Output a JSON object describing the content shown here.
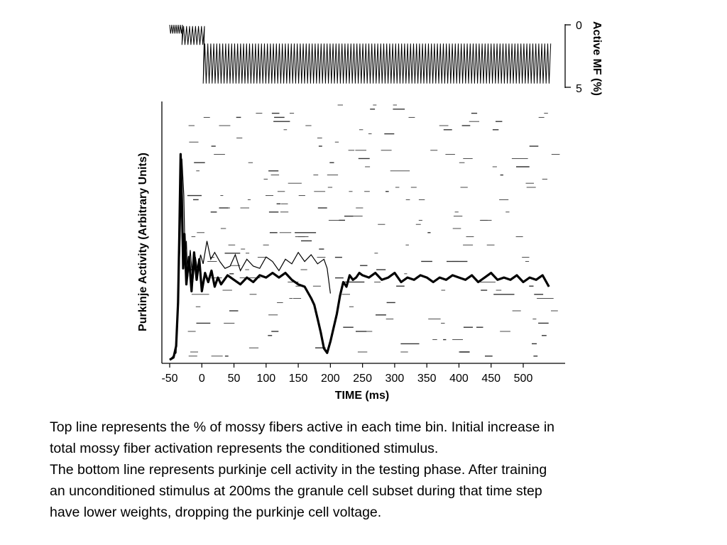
{
  "chart_data": [
    {
      "type": "line",
      "name": "mossy-fiber-panel",
      "ylabel": "Active MF (%)",
      "yticks": [
        "0",
        "5"
      ],
      "ylim": [
        0,
        5
      ],
      "y_inverted": true,
      "x_range": [
        -50,
        550
      ],
      "series": [
        {
          "pattern": "oscillating",
          "segments": [
            {
              "x_start": -50,
              "x_end": -33,
              "baseline": 0,
              "peak": 0.7
            },
            {
              "x_start": -33,
              "x_end": 0,
              "baseline": 0.1,
              "peak": 1.6
            },
            {
              "x_start": 0,
              "x_end": 540,
              "baseline": 1.5,
              "peak": 4.7
            }
          ]
        }
      ]
    },
    {
      "type": "line",
      "name": "purkinje-panel",
      "xlabel": "TIME (ms)",
      "ylabel": "Purkinje Activity (Arbitrary Units)",
      "xticks": [
        -50,
        0,
        50,
        100,
        150,
        200,
        250,
        300,
        350,
        400,
        450,
        500
      ],
      "xlim": [
        -50,
        550
      ],
      "ylim": [
        0,
        100
      ],
      "background": "granule cell spike raster",
      "series": [
        {
          "style": "thin",
          "x": [
            -50,
            -40,
            -34,
            -31,
            -28,
            -26,
            -24,
            -22,
            -18,
            -14,
            -10,
            -6,
            -2,
            2,
            8,
            14,
            20,
            28,
            36,
            44,
            52,
            60,
            70,
            80,
            90,
            100,
            110,
            120,
            130,
            140,
            150,
            160,
            170,
            180,
            190,
            195,
            200
          ],
          "y": [
            0,
            3,
            50,
            88,
            72,
            45,
            52,
            36,
            48,
            34,
            45,
            38,
            46,
            42,
            52,
            44,
            47,
            43,
            40,
            41,
            46,
            39,
            44,
            41,
            40,
            45,
            43,
            39,
            44,
            42,
            47,
            43,
            46,
            42,
            44,
            40,
            29
          ]
        },
        {
          "style": "thick",
          "x": [
            -50,
            -44,
            -40,
            -37,
            -35,
            -33,
            -31,
            -29,
            -27,
            -24,
            -20,
            -16,
            -12,
            -8,
            -4,
            0,
            5,
            10,
            15,
            20,
            25,
            30,
            40,
            50,
            60,
            70,
            80,
            90,
            100,
            110,
            120,
            130,
            140,
            150,
            160,
            170,
            175,
            180,
            185,
            190,
            195,
            200,
            205,
            210,
            215,
            220,
            225,
            230,
            235,
            240,
            245,
            250,
            260,
            270,
            280,
            290,
            300,
            310,
            320,
            330,
            340,
            350,
            360,
            370,
            380,
            390,
            400,
            410,
            420,
            430,
            440,
            450,
            460,
            470,
            480,
            490,
            500,
            510,
            520,
            530,
            540
          ],
          "y": [
            0,
            1,
            6,
            25,
            55,
            90,
            70,
            40,
            55,
            33,
            45,
            30,
            47,
            35,
            44,
            30,
            38,
            34,
            39,
            32,
            36,
            33,
            37,
            35,
            33,
            36,
            34,
            37,
            36,
            38,
            36,
            38,
            35,
            33,
            32,
            27,
            24,
            18,
            12,
            5,
            3,
            8,
            14,
            20,
            28,
            34,
            32,
            37,
            35,
            36,
            38,
            37,
            36,
            38,
            35,
            36,
            38,
            34,
            36,
            35,
            37,
            36,
            34,
            36,
            35,
            37,
            36,
            35,
            37,
            34,
            36,
            38,
            35,
            36,
            35,
            37,
            34,
            36,
            35,
            37,
            32
          ]
        }
      ]
    }
  ],
  "caption": {
    "line1": "Top line represents the % of mossy fibers active in each time bin.  Initial increase in",
    "line2": "total mossy fiber activation represents the conditioned stimulus.",
    "line3": "The bottom line represents purkinje cell activity in the testing phase.  After training",
    "line4": "an unconditioned stimulus at 200ms the granule cell subset during that time step",
    "line5": "have lower weights, dropping the purkinje cell voltage."
  }
}
